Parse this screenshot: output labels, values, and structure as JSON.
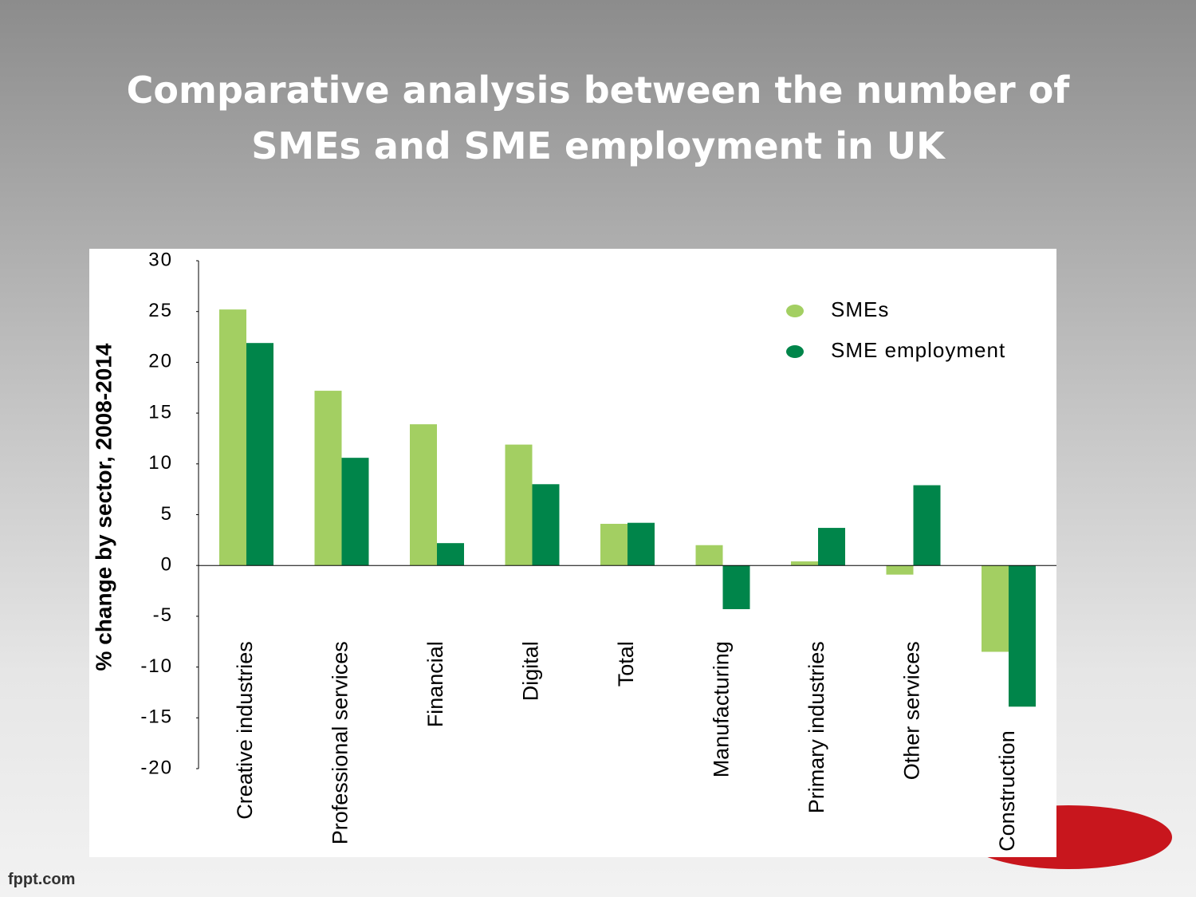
{
  "chart_data": {
    "type": "bar",
    "title": "Comparative analysis between the number of SMEs and SME employment in UK",
    "ylabel": "% change by sector, 2008-2014",
    "categories": [
      "Creative industries",
      "Professional services",
      "Financial",
      "Digital",
      "Total",
      "Manufacturing",
      "Primary industries",
      "Other services",
      "Construction"
    ],
    "series": [
      {
        "name": "SMEs",
        "color": "#a3cf62",
        "values": [
          25.2,
          17.2,
          13.9,
          11.9,
          4.1,
          2.0,
          0.4,
          -0.9,
          -8.5
        ]
      },
      {
        "name": "SME employment",
        "color": "#00854a",
        "values": [
          21.9,
          10.6,
          2.2,
          8.0,
          4.2,
          -4.3,
          3.7,
          7.9,
          -13.9
        ]
      }
    ],
    "ylim": [
      -20,
      30
    ],
    "yticks": [
      30,
      25,
      20,
      15,
      10,
      5,
      0,
      -5,
      -10,
      -15,
      -20
    ],
    "legend": "upper right"
  },
  "footer": "fppt.com"
}
